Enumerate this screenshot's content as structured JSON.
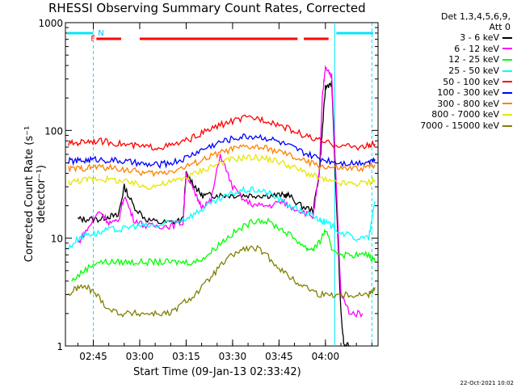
{
  "chart_data": {
    "type": "line",
    "title": "RHESSI Observing Summary Count Rates, Corrected",
    "xlabel": "Start Time (09-Jan-13 02:33:42)",
    "ylabel": "Corrected Count Rate (s⁻¹ detector⁻¹)",
    "y_scale": "log",
    "ylim": [
      1,
      1000
    ],
    "y_ticks": [
      "1",
      "10",
      "100",
      "1000"
    ],
    "x_ticks": [
      "02:45",
      "03:00",
      "03:15",
      "03:30",
      "03:45",
      "04:00"
    ],
    "xlim_minutes_of_day": [
      156,
      257
    ],
    "legend_header": [
      "Det 1,3,4,5,6,9,",
      "Att 0"
    ],
    "legend_position": "top-right",
    "flags": {
      "F": "F",
      "N": "N"
    },
    "footer": "22-Oct-2021 10:02",
    "series": [
      {
        "name": "3 - 6 keV",
        "color": "#000000",
        "x": [
          160,
          163,
          167,
          170,
          173,
          175,
          178,
          182,
          186,
          190,
          194,
          195,
          198,
          200,
          203,
          206,
          210,
          214,
          218,
          222,
          226,
          228,
          232,
          236,
          238,
          239,
          240,
          242,
          245,
          246,
          248
        ],
        "y": [
          15,
          15,
          15,
          16,
          16,
          30,
          20,
          15,
          14,
          14,
          15,
          40,
          30,
          25,
          25,
          25,
          25,
          25,
          25,
          25,
          25,
          25,
          20,
          18,
          40,
          100,
          250,
          280,
          2,
          1,
          1
        ]
      },
      {
        "name": "6 - 12 keV",
        "color": "#ff00ff",
        "x": [
          160,
          163,
          167,
          170,
          173,
          175,
          178,
          182,
          186,
          190,
          194,
          195,
          198,
          200,
          203,
          206,
          210,
          214,
          218,
          222,
          226,
          228,
          232,
          236,
          238,
          239,
          240,
          242,
          245,
          248,
          252
        ],
        "y": [
          9,
          12,
          18,
          14,
          14,
          25,
          15,
          13,
          13,
          13,
          14,
          40,
          25,
          20,
          22,
          60,
          30,
          22,
          20,
          20,
          22,
          20,
          18,
          16,
          40,
          200,
          400,
          320,
          3,
          2,
          2
        ]
      },
      {
        "name": "12 - 25 keV",
        "color": "#00ff00",
        "x": [
          158,
          162,
          166,
          170,
          174,
          178,
          182,
          186,
          190,
          194,
          198,
          202,
          206,
          210,
          214,
          218,
          222,
          226,
          230,
          234,
          236,
          238,
          240,
          242,
          246,
          250,
          254,
          256
        ],
        "y": [
          4,
          5,
          6,
          6,
          6,
          6,
          6,
          6,
          6,
          6,
          6,
          7,
          9,
          11,
          13,
          15,
          14,
          12,
          10,
          8,
          8,
          9,
          12,
          8,
          7,
          7,
          7,
          6
        ]
      },
      {
        "name": "25 - 50 keV",
        "color": "#00ffff",
        "x": [
          157,
          160,
          163,
          166,
          170,
          174,
          178,
          182,
          186,
          190,
          194,
          198,
          202,
          206,
          210,
          214,
          218,
          222,
          226,
          230,
          234,
          236,
          238,
          240,
          242,
          246,
          250,
          254,
          256
        ],
        "y": [
          8,
          10,
          11,
          11,
          12,
          12,
          13,
          13,
          13,
          14,
          15,
          17,
          20,
          23,
          26,
          28,
          28,
          26,
          22,
          19,
          17,
          16,
          15,
          14,
          13,
          11,
          10,
          10,
          22
        ]
      },
      {
        "name": "50 - 100 keV",
        "color": "#ff0000",
        "x": [
          157,
          160,
          163,
          166,
          170,
          174,
          178,
          182,
          186,
          190,
          194,
          198,
          202,
          206,
          210,
          214,
          218,
          222,
          226,
          230,
          234,
          238,
          242,
          246,
          250,
          254,
          256
        ],
        "y": [
          75,
          77,
          80,
          80,
          78,
          75,
          72,
          70,
          70,
          72,
          78,
          88,
          100,
          112,
          122,
          130,
          130,
          122,
          110,
          98,
          88,
          80,
          75,
          72,
          70,
          72,
          75
        ]
      },
      {
        "name": "100 - 300 keV",
        "color": "#0000ff",
        "x": [
          157,
          160,
          163,
          166,
          170,
          174,
          178,
          182,
          186,
          190,
          194,
          198,
          202,
          206,
          210,
          214,
          218,
          222,
          226,
          230,
          234,
          238,
          242,
          246,
          250,
          254,
          256
        ],
        "y": [
          52,
          52,
          53,
          54,
          53,
          52,
          50,
          48,
          48,
          50,
          54,
          62,
          70,
          78,
          84,
          88,
          88,
          84,
          76,
          68,
          60,
          55,
          52,
          50,
          50,
          52,
          54
        ]
      },
      {
        "name": "300 - 800 keV",
        "color": "#ff8000",
        "x": [
          157,
          160,
          163,
          166,
          170,
          174,
          178,
          182,
          186,
          190,
          194,
          198,
          202,
          206,
          210,
          214,
          218,
          222,
          226,
          230,
          234,
          238,
          242,
          246,
          250,
          254,
          256
        ],
        "y": [
          44,
          44,
          45,
          46,
          45,
          44,
          42,
          40,
          40,
          42,
          45,
          50,
          56,
          62,
          67,
          70,
          70,
          67,
          62,
          56,
          51,
          47,
          45,
          44,
          44,
          46,
          48
        ]
      },
      {
        "name": "800 - 7000 keV",
        "color": "#e6e600",
        "x": [
          157,
          160,
          163,
          166,
          170,
          174,
          178,
          182,
          186,
          190,
          194,
          198,
          202,
          206,
          210,
          214,
          218,
          222,
          226,
          230,
          234,
          238,
          242,
          246,
          250,
          254,
          256
        ],
        "y": [
          33,
          34,
          35,
          36,
          35,
          34,
          32,
          30,
          31,
          33,
          36,
          40,
          45,
          50,
          54,
          56,
          56,
          54,
          50,
          45,
          40,
          36,
          33,
          32,
          32,
          33,
          35
        ]
      },
      {
        "name": "7000 - 15000 keV",
        "color": "#808000",
        "x": [
          157,
          160,
          163,
          166,
          170,
          174,
          178,
          182,
          186,
          190,
          194,
          198,
          202,
          206,
          210,
          214,
          218,
          222,
          226,
          230,
          234,
          238,
          242,
          246,
          250,
          254,
          256
        ],
        "y": [
          3,
          3.5,
          3.5,
          3,
          2.2,
          2,
          2,
          2,
          2,
          2,
          2.5,
          3,
          4,
          5.5,
          7,
          8,
          8,
          6.5,
          5,
          4,
          3.5,
          3,
          3,
          3,
          3,
          3,
          3.5
        ]
      }
    ]
  }
}
